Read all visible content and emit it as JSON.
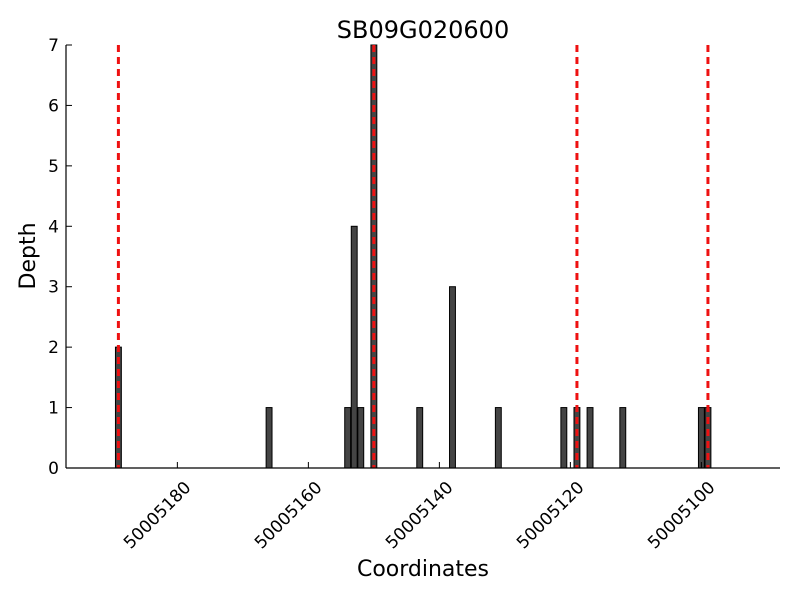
{
  "chart_data": {
    "type": "bar",
    "title": "SB09G020600",
    "xlabel": "Coordinates",
    "ylabel": "Depth",
    "x_reversed": true,
    "xlim": [
      50005197,
      50005088
    ],
    "ylim": [
      0,
      7
    ],
    "x_ticks": [
      50005180,
      50005160,
      50005140,
      50005120,
      50005100
    ],
    "y_ticks": [
      0,
      1,
      2,
      3,
      4,
      5,
      6,
      7
    ],
    "bar_color": "#444444",
    "marker_color": "#ee1111",
    "grid": false,
    "legend": "none",
    "bars": [
      {
        "x": 50005189,
        "depth": 2
      },
      {
        "x": 50005166,
        "depth": 1
      },
      {
        "x": 50005154,
        "depth": 1
      },
      {
        "x": 50005153,
        "depth": 4
      },
      {
        "x": 50005152,
        "depth": 1
      },
      {
        "x": 50005150,
        "depth": 7
      },
      {
        "x": 50005143,
        "depth": 1
      },
      {
        "x": 50005138,
        "depth": 3
      },
      {
        "x": 50005131,
        "depth": 1
      },
      {
        "x": 50005121,
        "depth": 1
      },
      {
        "x": 50005119,
        "depth": 1
      },
      {
        "x": 50005117,
        "depth": 1
      },
      {
        "x": 50005112,
        "depth": 1
      },
      {
        "x": 50005100,
        "depth": 1
      },
      {
        "x": 50005099,
        "depth": 1
      }
    ],
    "markers": [
      50005189,
      50005150,
      50005119,
      50005099
    ]
  }
}
